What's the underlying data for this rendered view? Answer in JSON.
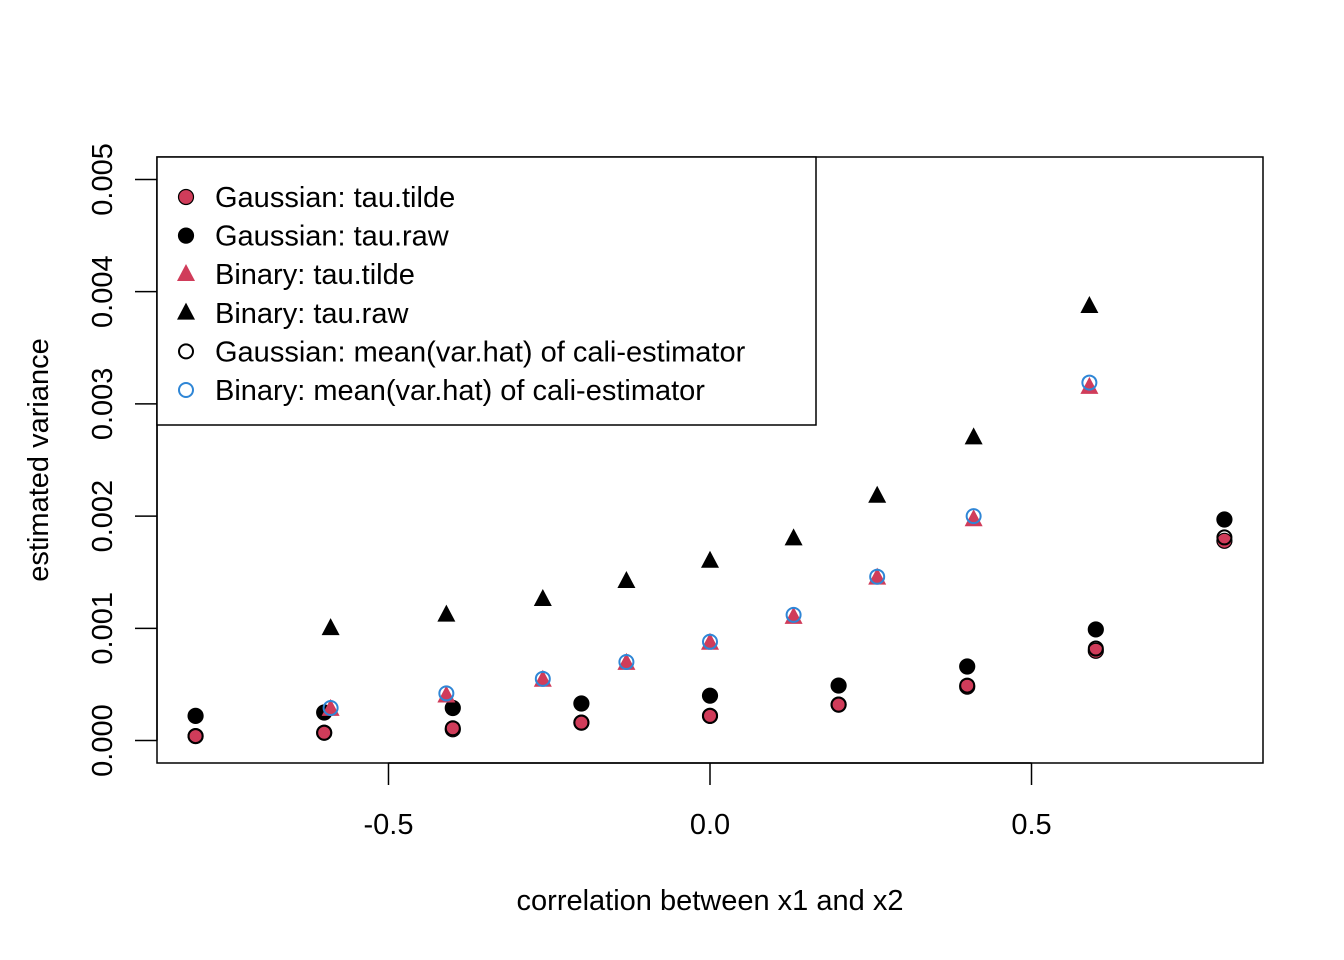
{
  "chart_data": {
    "type": "scatter",
    "title": "",
    "xlabel": "correlation between x1 and x2",
    "ylabel": "estimated variance",
    "xlim": [
      -0.86,
      0.86
    ],
    "ylim": [
      -0.0002,
      0.0052
    ],
    "x_ticks": [
      {
        "value": -0.5,
        "label": "-0.5"
      },
      {
        "value": 0.0,
        "label": "0.0"
      },
      {
        "value": 0.5,
        "label": "0.5"
      }
    ],
    "y_ticks": [
      {
        "value": 0.0,
        "label": "0.000"
      },
      {
        "value": 0.001,
        "label": "0.001"
      },
      {
        "value": 0.002,
        "label": "0.002"
      },
      {
        "value": 0.003,
        "label": "0.003"
      },
      {
        "value": 0.004,
        "label": "0.004"
      },
      {
        "value": 0.005,
        "label": "0.005"
      }
    ],
    "grid": false,
    "legend_position": "top-left",
    "series": [
      {
        "name": "Gaussian: tau.tilde",
        "marker": "filled-circle",
        "color": "#d03c5a",
        "points": [
          [
            -0.8,
            4e-05
          ],
          [
            -0.6,
            7e-05
          ],
          [
            -0.4,
            0.0001
          ],
          [
            -0.2,
            0.00016
          ],
          [
            0.0,
            0.00022
          ],
          [
            0.2,
            0.00032
          ],
          [
            0.4,
            0.00048
          ],
          [
            0.6,
            0.0008
          ],
          [
            0.8,
            0.00178
          ]
        ]
      },
      {
        "name": "Gaussian: tau.raw",
        "marker": "filled-circle",
        "color": "#000000",
        "points": [
          [
            -0.8,
            0.00022
          ],
          [
            -0.6,
            0.00025
          ],
          [
            -0.4,
            0.00029
          ],
          [
            -0.2,
            0.00033
          ],
          [
            0.0,
            0.0004
          ],
          [
            0.2,
            0.00049
          ],
          [
            0.4,
            0.00066
          ],
          [
            0.6,
            0.00099
          ],
          [
            0.8,
            0.00197
          ]
        ]
      },
      {
        "name": "Binary: tau.tilde",
        "marker": "filled-triangle",
        "color": "#d03c5a",
        "points": [
          [
            -0.59,
            0.00028
          ],
          [
            -0.41,
            0.0004
          ],
          [
            -0.26,
            0.00054
          ],
          [
            -0.13,
            0.00069
          ],
          [
            0.0,
            0.00087
          ],
          [
            0.13,
            0.0011
          ],
          [
            0.26,
            0.00145
          ],
          [
            0.41,
            0.00197
          ],
          [
            0.59,
            0.00315
          ]
        ]
      },
      {
        "name": "Binary: tau.raw",
        "marker": "filled-triangle",
        "color": "#000000",
        "points": [
          [
            -0.59,
            0.001
          ],
          [
            -0.41,
            0.00112
          ],
          [
            -0.26,
            0.00126
          ],
          [
            -0.13,
            0.00142
          ],
          [
            0.0,
            0.0016
          ],
          [
            0.13,
            0.0018
          ],
          [
            0.26,
            0.00218
          ],
          [
            0.41,
            0.0027
          ],
          [
            0.59,
            0.00387
          ]
        ]
      },
      {
        "name": "Gaussian: mean(var.hat) of cali-estimator",
        "marker": "open-circle",
        "color": "#000000",
        "points": [
          [
            -0.8,
            4e-05
          ],
          [
            -0.6,
            7e-05
          ],
          [
            -0.4,
            0.00011
          ],
          [
            -0.2,
            0.00016
          ],
          [
            0.0,
            0.00022
          ],
          [
            0.2,
            0.00032
          ],
          [
            0.4,
            0.00049
          ],
          [
            0.6,
            0.00082
          ],
          [
            0.8,
            0.00181
          ]
        ]
      },
      {
        "name": "Binary: mean(var.hat) of cali-estimator",
        "marker": "open-circle",
        "color": "#2f86d6",
        "points": [
          [
            -0.59,
            0.00029
          ],
          [
            -0.41,
            0.00042
          ],
          [
            -0.26,
            0.00055
          ],
          [
            -0.13,
            0.0007
          ],
          [
            0.0,
            0.00088
          ],
          [
            0.13,
            0.00112
          ],
          [
            0.26,
            0.00146
          ],
          [
            0.41,
            0.002
          ],
          [
            0.59,
            0.00319
          ]
        ]
      }
    ]
  }
}
